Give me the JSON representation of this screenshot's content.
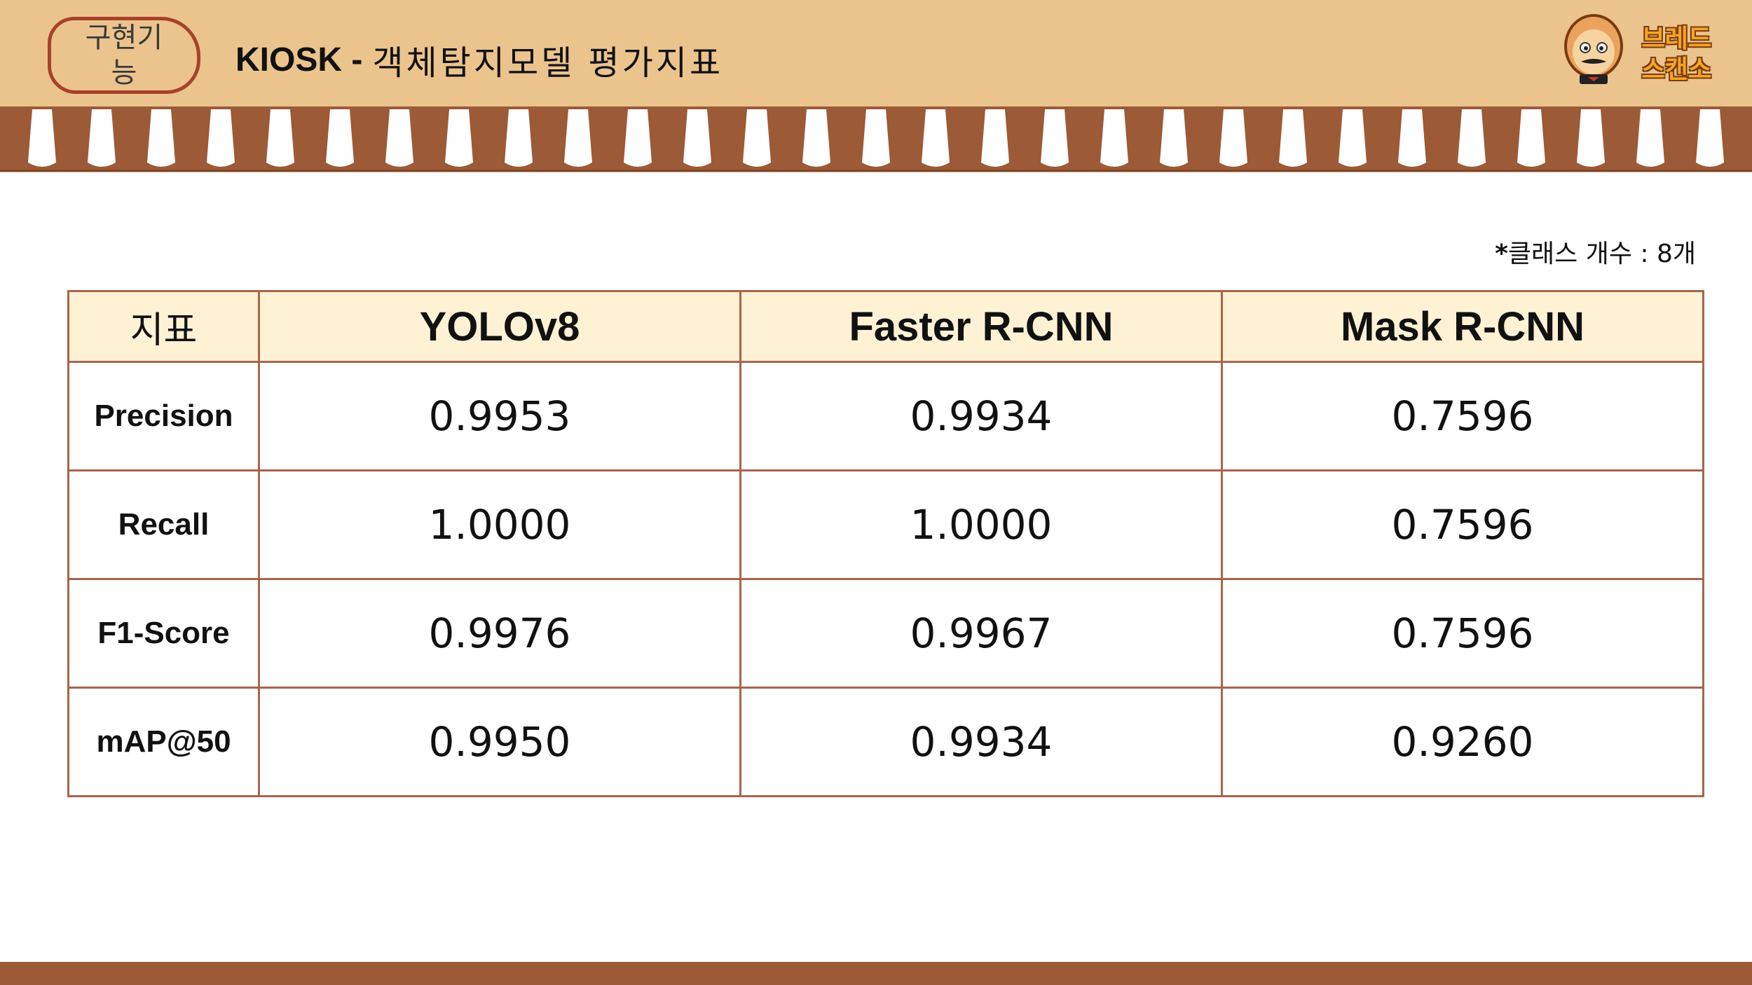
{
  "header": {
    "badge_label": "구현기능",
    "title_prefix": "KIOSK -",
    "title_main": "객체탐지모델 평가지표"
  },
  "logo": {
    "line1": "브레드",
    "line2": "스캔소",
    "icon": "bread-mascot-icon"
  },
  "note": {
    "asterisk": "*",
    "text": "클래스 개수 : 8개"
  },
  "colors": {
    "header_bg": "#ebc48d",
    "awning_brown": "#9c5a36",
    "table_border": "#a8654a",
    "table_header_bg": "#fff2d4",
    "badge_border": "#a8412a"
  },
  "table": {
    "columns": [
      "지표",
      "YOLOv8",
      "Faster R-CNN",
      "Mask R-CNN"
    ],
    "rows": [
      {
        "metric": "Precision",
        "values": [
          "0.9953",
          "0.9934",
          "0.7596"
        ]
      },
      {
        "metric": "Recall",
        "values": [
          "1.0000",
          "1.0000",
          "0.7596"
        ]
      },
      {
        "metric": "F1-Score",
        "values": [
          "0.9976",
          "0.9967",
          "0.7596"
        ]
      },
      {
        "metric": "mAP@50",
        "values": [
          "0.9950",
          "0.9934",
          "0.9260"
        ]
      }
    ]
  }
}
